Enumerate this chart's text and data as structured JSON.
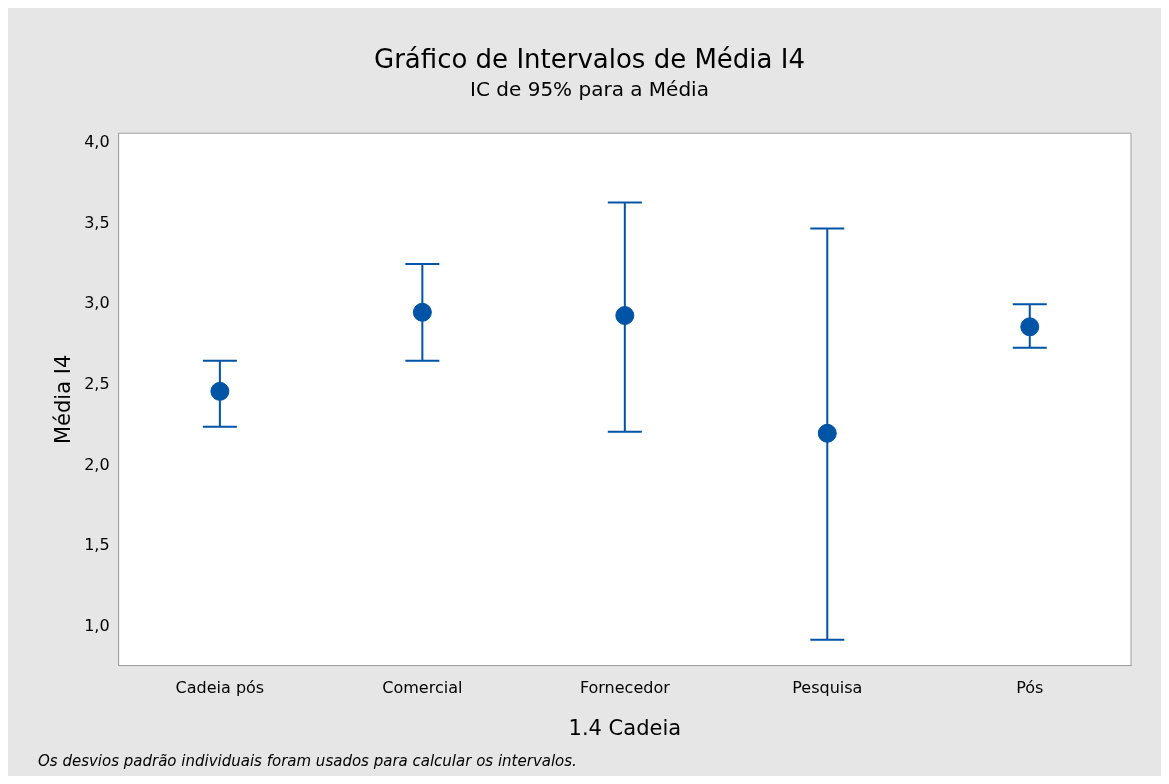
{
  "chart_data": {
    "type": "scatter",
    "title": "Gráfico de Intervalos de Média I4",
    "subtitle": "IC de 95% para a Média",
    "xlabel": "1.4 Cadeia",
    "ylabel": "Média I4",
    "categories": [
      "Cadeia pós",
      "Comercial",
      "Fornecedor",
      "Pesquisa",
      "Pós"
    ],
    "series": [
      {
        "color": "#0054a6",
        "values": [
          2.46,
          2.95,
          2.93,
          2.2,
          2.86
        ],
        "errors": [
          [
            2.24,
            2.65
          ],
          [
            2.65,
            3.25
          ],
          [
            2.21,
            3.63
          ],
          [
            0.92,
            3.47
          ],
          [
            2.73,
            3.0
          ]
        ]
      }
    ],
    "ylim": [
      0.76,
      4.06
    ],
    "yticks": [
      {
        "value": 1,
        "label": "1,0"
      },
      {
        "value": 1.5,
        "label": "1,5"
      },
      {
        "value": 2,
        "label": "2,0"
      },
      {
        "value": 2.5,
        "label": "2,5"
      },
      {
        "value": 3,
        "label": "3,0"
      },
      {
        "value": 3.5,
        "label": "3,5"
      },
      {
        "value": 4,
        "label": "4,0"
      }
    ],
    "grid": false,
    "legend": false,
    "marker": "circle",
    "annotations": [
      "Os desvios padrão individuais foram usados para calcular os intervalos."
    ]
  }
}
